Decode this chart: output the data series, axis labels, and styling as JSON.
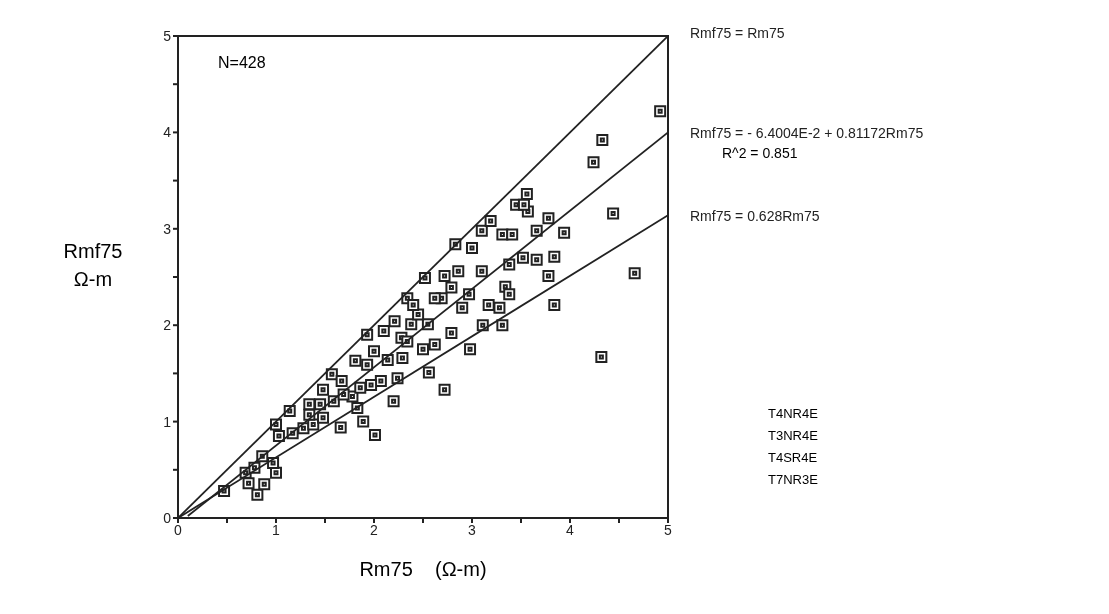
{
  "chart_data": {
    "type": "scatter",
    "xlabel": "Rm75    (Ω-m)",
    "ylabel": "Rmf75\nΩ-m",
    "xlim": [
      0,
      5
    ],
    "ylim": [
      0,
      5
    ],
    "xticks": [
      0,
      {
        "value": 0.5,
        "label": null
      },
      1,
      {
        "value": 1.5,
        "label": null
      },
      2,
      {
        "value": 2.5,
        "label": null
      },
      3,
      {
        "value": 3.5,
        "label": null
      },
      4,
      {
        "value": 4.5,
        "label": null
      },
      5
    ],
    "yticks": [
      0,
      {
        "value": 0.5,
        "label": null
      },
      1,
      {
        "value": 1.5,
        "label": null
      },
      2,
      {
        "value": 2.5,
        "label": null
      },
      3,
      {
        "value": 3.5,
        "label": null
      },
      4,
      {
        "value": 4.5,
        "label": null
      },
      5
    ],
    "grid": false,
    "legend": false,
    "annotations": [
      "N=428",
      "R^2 = 0.851",
      "T4NR4E",
      "T3NR4E",
      "T4SR4E",
      "T7NR3E"
    ],
    "series": [
      {
        "type": "scatter",
        "color": "#222222",
        "marker": "square",
        "x": [
          4.92,
          4.33,
          4.24,
          4.44,
          4.66,
          4.32,
          3.84,
          3.78,
          3.84,
          3.94,
          3.78,
          3.66,
          3.56,
          3.57,
          3.45,
          3.66,
          3.31,
          3.11,
          2.98,
          2.79,
          2.72,
          2.56,
          2.2,
          2.01,
          1.89,
          1.66,
          1.34,
          1.14,
          1.0,
          0.47,
          0.81,
          0.72,
          0.88,
          1.0,
          0.97,
          0.86,
          0.69,
          0.78,
          1.03,
          1.17,
          1.28,
          1.38,
          1.48,
          1.48,
          1.57,
          1.67,
          1.81,
          1.93,
          2.1,
          2.0,
          1.93,
          1.78,
          1.59,
          1.45,
          2.07,
          2.24,
          2.29,
          2.14,
          2.28,
          2.34,
          2.52,
          2.38,
          2.55,
          2.62,
          2.5,
          2.69,
          2.72,
          2.83,
          2.86,
          2.97,
          3.0,
          3.1,
          3.19,
          3.1,
          3.17,
          3.28,
          3.34,
          3.31,
          3.41,
          3.38,
          3.52,
          3.38,
          2.9,
          2.79,
          2.62,
          2.45,
          2.4,
          2.34,
          2.21,
          1.97,
          1.86,
          1.69,
          1.83,
          1.34,
          3.53
        ],
        "values": [
          4.22,
          3.92,
          3.69,
          3.16,
          2.54,
          1.67,
          2.21,
          2.51,
          2.71,
          2.96,
          3.11,
          2.98,
          3.36,
          3.18,
          3.25,
          2.68,
          2.0,
          2.0,
          1.75,
          1.92,
          1.33,
          1.51,
          1.21,
          0.86,
          1.0,
          0.94,
          1.18,
          1.11,
          0.97,
          0.28,
          0.24,
          0.36,
          0.35,
          0.47,
          0.57,
          0.64,
          0.47,
          0.52,
          0.85,
          0.88,
          0.93,
          0.97,
          1.04,
          1.33,
          1.49,
          1.42,
          1.63,
          1.9,
          1.94,
          1.73,
          1.59,
          1.26,
          1.21,
          1.18,
          1.42,
          1.45,
          1.66,
          1.64,
          1.87,
          2.28,
          2.49,
          2.01,
          2.01,
          1.8,
          1.75,
          2.28,
          2.51,
          2.84,
          2.56,
          2.32,
          2.8,
          2.98,
          3.08,
          2.56,
          2.21,
          2.18,
          2.4,
          2.94,
          2.94,
          2.63,
          2.7,
          2.32,
          2.18,
          2.39,
          2.28,
          2.11,
          2.21,
          1.83,
          2.04,
          1.38,
          1.35,
          1.28,
          1.14,
          1.07,
          3.25
        ]
      },
      {
        "type": "line",
        "name": "Rmf75 = Rm75",
        "color": "#222222",
        "x": [
          0,
          5
        ],
        "values": [
          0,
          5
        ]
      },
      {
        "type": "line",
        "name": "Rmf75 = - 6.4004E-2 + 0.81172Rm75",
        "color": "#222222",
        "x": [
          0.1,
          5
        ],
        "values": [
          0.02,
          4.0
        ]
      },
      {
        "type": "line",
        "name": "Rmf75 = 0.628Rm75",
        "color": "#222222",
        "x": [
          0,
          5
        ],
        "values": [
          0,
          3.14
        ]
      }
    ]
  }
}
